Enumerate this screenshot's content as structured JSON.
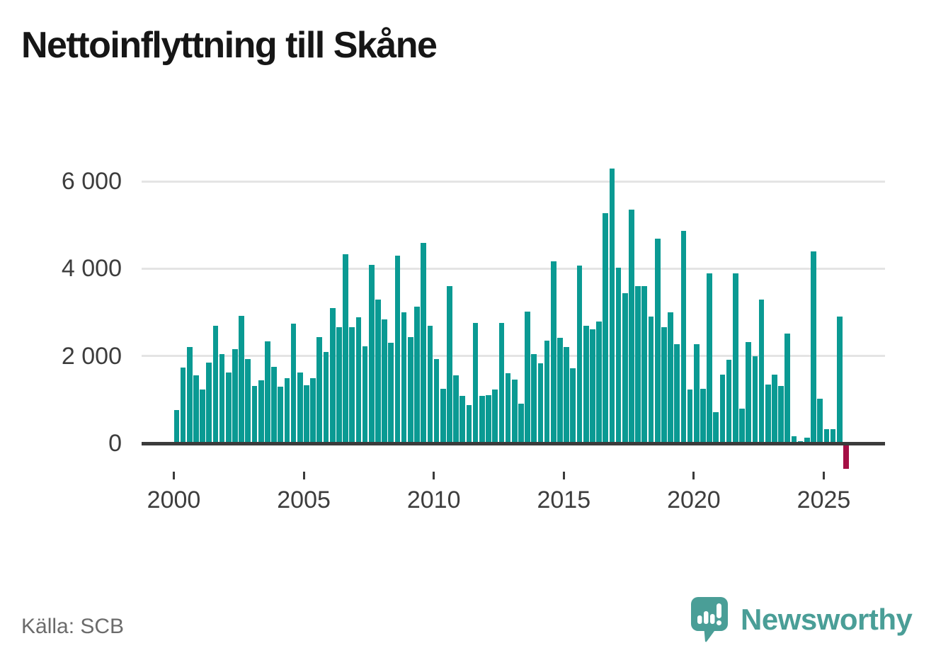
{
  "title": "Nettoinflyttning till Skåne",
  "source": "Källa: SCB",
  "brand": {
    "name": "Newsworthy",
    "logo_icon": "speech-bubble-with-bar-chart-and-exclamation"
  },
  "colors": {
    "bar_positive": "#0a9a93",
    "bar_negative": "#a50f45",
    "axis": "#3b3b3b",
    "gridline": "#e4e4e4",
    "tick_label": "#3d3d3d",
    "title_text": "#161616",
    "source_text": "#6b6b6b",
    "brand_teal": "#4a9e97"
  },
  "chart_data": {
    "type": "bar",
    "title": "Nettoinflyttning till Skåne",
    "xlabel": "",
    "ylabel": "",
    "x_unit": "quarter",
    "legend": "none",
    "grid": "horizontal",
    "ylim": [
      -700,
      6500
    ],
    "y_ticks": [
      {
        "value": 0,
        "label": "0"
      },
      {
        "value": 2000,
        "label": "2 000"
      },
      {
        "value": 4000,
        "label": "4 000"
      },
      {
        "value": 6000,
        "label": "6 000"
      }
    ],
    "x_ticks": [
      {
        "label": "2000",
        "quarter_index": 0
      },
      {
        "label": "2005",
        "quarter_index": 20
      },
      {
        "label": "2010",
        "quarter_index": 40
      },
      {
        "label": "2015",
        "quarter_index": 60
      },
      {
        "label": "2020",
        "quarter_index": 80
      },
      {
        "label": "2025",
        "quarter_index": 100
      }
    ],
    "data_by_year": [
      {
        "year": 2000,
        "q": [
          760,
          1730,
          2210,
          1550
        ]
      },
      {
        "year": 2001,
        "q": [
          1230,
          1850,
          2700,
          2040
        ]
      },
      {
        "year": 2002,
        "q": [
          1630,
          2160,
          2920,
          1930
        ]
      },
      {
        "year": 2003,
        "q": [
          1310,
          1450,
          2330,
          1750
        ]
      },
      {
        "year": 2004,
        "q": [
          1300,
          1490,
          2740,
          1620
        ]
      },
      {
        "year": 2005,
        "q": [
          1330,
          1500,
          2430,
          2090
        ]
      },
      {
        "year": 2006,
        "q": [
          3100,
          2660,
          4330,
          2660
        ]
      },
      {
        "year": 2007,
        "q": [
          2890,
          2230,
          4090,
          3300
        ]
      },
      {
        "year": 2008,
        "q": [
          2840,
          2310,
          4300,
          3000
        ]
      },
      {
        "year": 2009,
        "q": [
          2430,
          3130,
          4590,
          2700
        ]
      },
      {
        "year": 2010,
        "q": [
          1930,
          1250,
          3600,
          1550
        ]
      },
      {
        "year": 2011,
        "q": [
          1080,
          880,
          2760,
          1090
        ]
      },
      {
        "year": 2012,
        "q": [
          1100,
          1240,
          2760,
          1610
        ]
      },
      {
        "year": 2013,
        "q": [
          1460,
          910,
          3010,
          2050
        ]
      },
      {
        "year": 2014,
        "q": [
          1840,
          2350,
          4170,
          2420
        ]
      },
      {
        "year": 2015,
        "q": [
          2200,
          1720,
          4070,
          2690
        ]
      },
      {
        "year": 2016,
        "q": [
          2610,
          2790,
          5270,
          6300
        ]
      },
      {
        "year": 2017,
        "q": [
          4030,
          3440,
          5360,
          3600
        ]
      },
      {
        "year": 2018,
        "q": [
          3600,
          2900,
          4680,
          2660
        ]
      },
      {
        "year": 2019,
        "q": [
          3000,
          2270,
          4860,
          1230
        ]
      },
      {
        "year": 2020,
        "q": [
          2270,
          1250,
          3890,
          720
        ]
      },
      {
        "year": 2021,
        "q": [
          1580,
          1920,
          3890,
          790
        ]
      },
      {
        "year": 2022,
        "q": [
          2320,
          2000,
          3290,
          1340
        ]
      },
      {
        "year": 2023,
        "q": [
          1570,
          1310,
          2520,
          160
        ]
      },
      {
        "year": 2024,
        "q": [
          55,
          125,
          4390,
          1030
        ]
      },
      {
        "year": 2025,
        "q": [
          330,
          320,
          2910,
          -540
        ]
      }
    ]
  }
}
